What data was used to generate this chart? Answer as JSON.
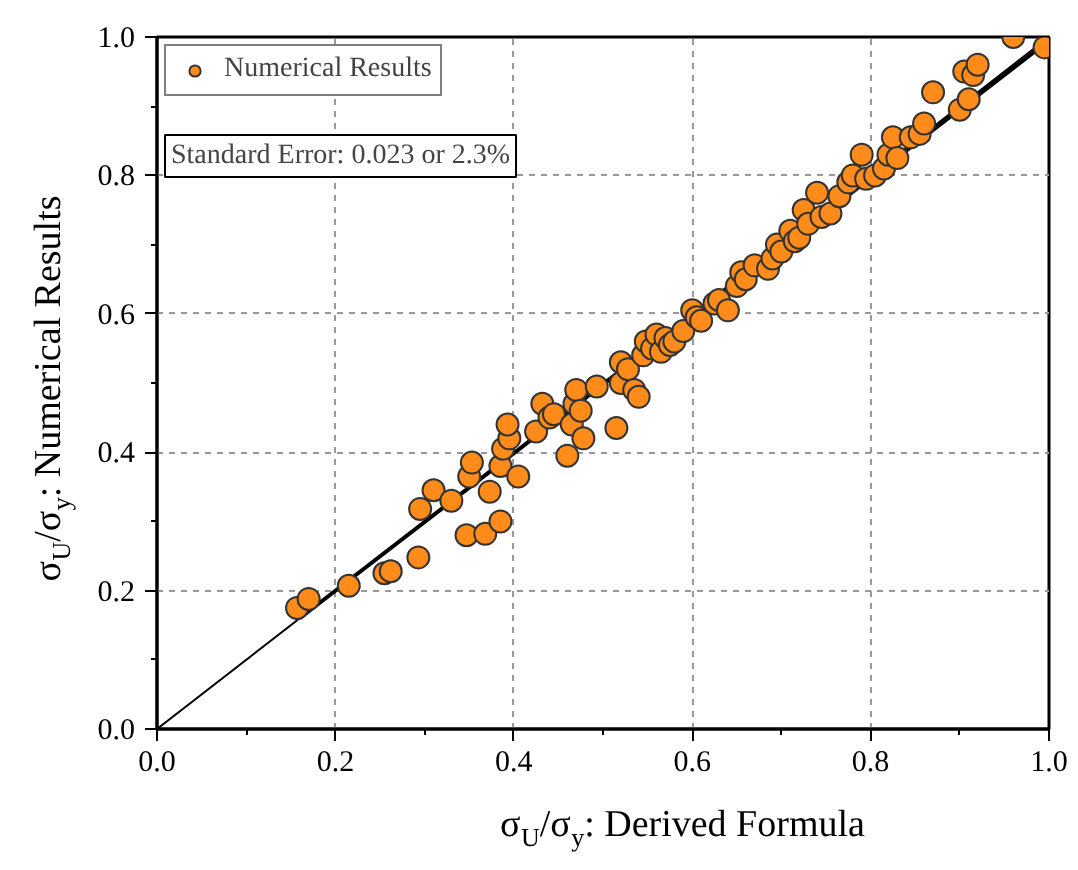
{
  "chart_data": {
    "type": "scatter",
    "xlabel": "σ$_{U}$/σ$_{y}$: Derived Formula",
    "ylabel": "σ$_{U}$/σ$_{y}$: Numerical Results",
    "xlim": [
      0,
      1
    ],
    "ylim": [
      0,
      1
    ],
    "xticks": [
      {
        "value": 0,
        "label": "0.0"
      },
      {
        "value": 0.1,
        "label": null
      },
      0.2,
      {
        "value": 0.3,
        "label": null
      },
      0.4,
      {
        "value": 0.5,
        "label": null
      },
      0.6,
      {
        "value": 0.7,
        "label": null
      },
      0.8,
      {
        "value": 0.9,
        "label": null
      },
      {
        "value": 1,
        "label": "1.0"
      }
    ],
    "yticks": [
      {
        "value": 0,
        "label": "0.0"
      },
      {
        "value": 0.1,
        "label": null
      },
      0.2,
      {
        "value": 0.3,
        "label": null
      },
      0.4,
      {
        "value": 0.5,
        "label": null
      },
      0.6,
      {
        "value": 0.7,
        "label": null
      },
      0.8,
      {
        "value": 0.9,
        "label": null
      },
      {
        "value": 1,
        "label": "1.0"
      }
    ],
    "grid": true,
    "legend": "top left",
    "marker": "circle",
    "annotations": [
      "Standard Error: 0.023 or 2.3%"
    ],
    "series": [
      {
        "type": "line",
        "marker": "none",
        "color": "#000000",
        "x": [
          0,
          1
        ],
        "values": [
          0,
          1
        ]
      },
      {
        "type": "line",
        "marker": "none",
        "color": "#000000",
        "x": [
          0.16,
          1
        ],
        "values": [
          0.16,
          0.995
        ]
      },
      {
        "name": "Numerical Results",
        "color": "#ff8c1a",
        "x": [
          0.157,
          0.17,
          0.215,
          0.255,
          0.262,
          0.293,
          0.295,
          0.31,
          0.33,
          0.347,
          0.35,
          0.353,
          0.368,
          0.373,
          0.385,
          0.385,
          0.388,
          0.395,
          0.393,
          0.405,
          0.425,
          0.432,
          0.44,
          0.445,
          0.46,
          0.465,
          0.468,
          0.47,
          0.475,
          0.478,
          0.493,
          0.515,
          0.52,
          0.52,
          0.528,
          0.535,
          0.54,
          0.545,
          0.548,
          0.555,
          0.56,
          0.565,
          0.57,
          0.575,
          0.58,
          0.59,
          0.6,
          0.605,
          0.61,
          0.625,
          0.63,
          0.64,
          0.65,
          0.655,
          0.66,
          0.67,
          0.685,
          0.69,
          0.695,
          0.7,
          0.71,
          0.715,
          0.72,
          0.725,
          0.73,
          0.74,
          0.745,
          0.755,
          0.765,
          0.775,
          0.78,
          0.79,
          0.795,
          0.805,
          0.815,
          0.82,
          0.825,
          0.83,
          0.845,
          0.855,
          0.86,
          0.87,
          0.9,
          0.905,
          0.91,
          0.915,
          0.92,
          0.96,
          0.995
        ],
        "values": [
          0.175,
          0.188,
          0.207,
          0.225,
          0.228,
          0.248,
          0.318,
          0.345,
          0.33,
          0.28,
          0.365,
          0.385,
          0.282,
          0.343,
          0.3,
          0.38,
          0.405,
          0.42,
          0.44,
          0.365,
          0.43,
          0.47,
          0.45,
          0.455,
          0.395,
          0.44,
          0.47,
          0.49,
          0.46,
          0.42,
          0.495,
          0.435,
          0.5,
          0.53,
          0.52,
          0.49,
          0.48,
          0.54,
          0.56,
          0.55,
          0.57,
          0.545,
          0.565,
          0.555,
          0.56,
          0.575,
          0.605,
          0.595,
          0.59,
          0.615,
          0.62,
          0.605,
          0.64,
          0.66,
          0.65,
          0.67,
          0.665,
          0.68,
          0.7,
          0.69,
          0.72,
          0.705,
          0.71,
          0.75,
          0.73,
          0.775,
          0.74,
          0.745,
          0.77,
          0.79,
          0.8,
          0.83,
          0.795,
          0.8,
          0.81,
          0.83,
          0.855,
          0.825,
          0.855,
          0.86,
          0.875,
          0.92,
          0.895,
          0.95,
          0.91,
          0.945,
          0.96,
          1.0,
          0.985
        ]
      }
    ]
  }
}
